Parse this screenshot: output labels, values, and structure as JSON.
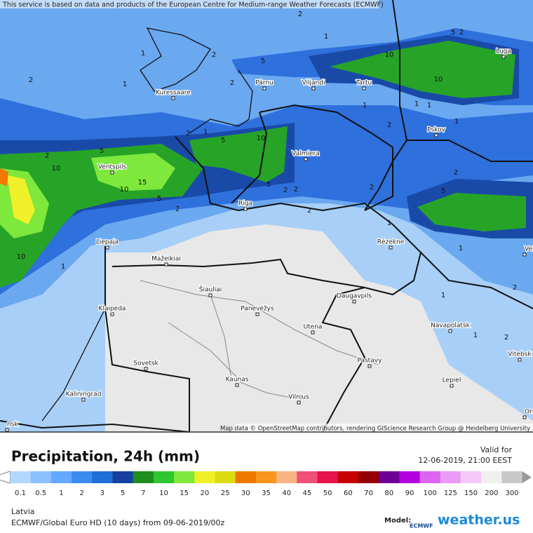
{
  "attribution": "This service is based on data and products of the European Centre for Medium-range Weather Forecasts (ECMWF)",
  "map_credit": "Map data © OpenStreetMap contributors, rendering GIScience Research Group @ Heidelberg University",
  "cities": [
    "Kuressaare",
    "Pärnu",
    "Viljandi",
    "Tartu",
    "Luga",
    "Pskov",
    "Valmiera",
    "Ventspils",
    "Riga",
    "Rēzekne",
    "Liepaja",
    "Mažeikiai",
    "Šiauliai",
    "Daugavpils",
    "Klaipeda",
    "Panevėžys",
    "Utena",
    "Navapolatsk",
    "Vitebsk",
    "Sovetsk",
    "Pastavy",
    "Kaunas",
    "Lepiel",
    "Kaliningrad",
    "Vilnius",
    "Veli",
    "Ors",
    "nsk"
  ],
  "contour_labels": [
    "1",
    "2",
    "5",
    "2",
    "1",
    "10",
    "5",
    "10",
    "1",
    "2",
    "2",
    "1",
    "5",
    "2",
    "10",
    "2",
    "2",
    "5",
    "10",
    "15",
    "10",
    "5",
    "5",
    "2",
    "2",
    "1",
    "2",
    "1",
    "1",
    "10",
    "1",
    "2",
    "1",
    "2",
    "5",
    "1",
    "2",
    "2",
    "1",
    "1",
    "2",
    "1",
    "2"
  ],
  "legend": {
    "title": "Precipitation, 24h (mm)",
    "valid_label": "Valid for",
    "valid_time": "12-06-2019, 21:00 EEST",
    "labels": [
      "0.1",
      "0.5",
      "1",
      "2",
      "3",
      "5",
      "7",
      "10",
      "15",
      "20",
      "25",
      "30",
      "35",
      "40",
      "45",
      "50",
      "60",
      "70",
      "80",
      "90",
      "100",
      "125",
      "150",
      "200",
      "300"
    ],
    "colors": [
      "#b4d7ff",
      "#8cc0ff",
      "#64a8ff",
      "#3c8cf0",
      "#1f6fd8",
      "#1540a0",
      "#1e8c1e",
      "#2ec82e",
      "#7ee83c",
      "#f0f028",
      "#dcdc14",
      "#f07800",
      "#f8961e",
      "#f8b482",
      "#f05078",
      "#e6144b",
      "#c80000",
      "#960000",
      "#6e0096",
      "#b400dc",
      "#dc64f0",
      "#eb9bf5",
      "#f5c8fa",
      "#f0f0f0",
      "#c8c8c8"
    ]
  },
  "footer": {
    "region": "Latvia",
    "model_run": "ECMWF/Global Euro HD (10 days) from 09-06-2019/00z",
    "model_label": "Model:",
    "model_name": "ECMWF",
    "brand": "weather.us"
  }
}
